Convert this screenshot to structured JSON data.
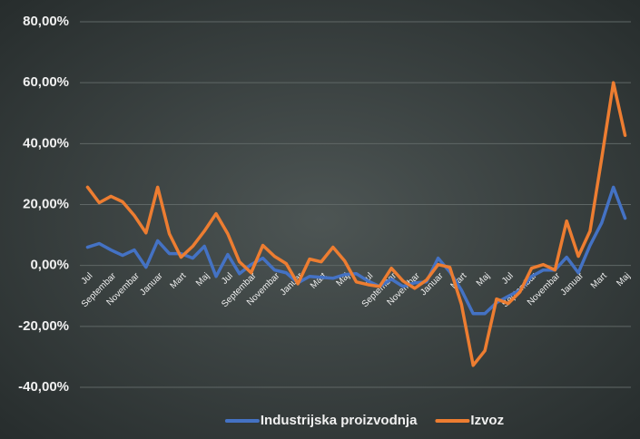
{
  "chart_data": {
    "type": "line",
    "categories": [
      "Jul",
      null,
      "Septembar",
      null,
      "Novembar",
      null,
      "Januar",
      null,
      "Mart",
      null,
      "Maj",
      null,
      "Jul",
      null,
      "Septembar",
      null,
      "Novembar",
      null,
      "Januar",
      null,
      "Mart",
      null,
      "Maj",
      null,
      "Jul",
      null,
      "Septembar",
      null,
      "Novembar",
      null,
      "Januar",
      null,
      "Mart",
      null,
      "Maj",
      null,
      "Jul",
      null,
      "Septembar",
      null,
      "Novembar",
      null,
      "Januar",
      null,
      "Mart",
      null,
      "Maj"
    ],
    "series": [
      {
        "name": "Industrijska proizvodnja",
        "color": "#4472c4",
        "values": [
          6,
          7.2,
          5.1,
          3.3,
          5.1,
          -0.6,
          8.1,
          3.9,
          3.9,
          2.4,
          6.3,
          -3.6,
          3.6,
          -2.7,
          0.3,
          2.4,
          -1.5,
          -2.4,
          -5.7,
          -3.6,
          -3.9,
          -4.2,
          -3,
          -2.7,
          -5.1,
          -6.9,
          -4.5,
          -6.9,
          -5.7,
          -5.4,
          2.4,
          -2.1,
          -8.1,
          -15.8,
          -15.8,
          -12.2,
          -10.1,
          -8.1,
          -3.6,
          -1.5,
          -1.5,
          2.7,
          -2.4,
          6.6,
          14,
          25.7,
          15.5
        ]
      },
      {
        "name": "Izvoz",
        "color": "#ed7d31",
        "values": [
          25.7,
          20.6,
          22.7,
          20.9,
          16.4,
          10.7,
          25.7,
          10.4,
          2.7,
          6.3,
          11.3,
          17,
          10.4,
          1.2,
          -2.4,
          6.6,
          3,
          0.6,
          -6,
          2.1,
          1.2,
          6,
          1.5,
          -5.4,
          -6.3,
          -6.9,
          -0.9,
          -5.1,
          -7.5,
          -4.8,
          0.3,
          -0.6,
          -12.8,
          -32.8,
          -28,
          -11,
          -12.5,
          -8.7,
          -0.9,
          0.3,
          -1.5,
          14.6,
          3,
          11.3,
          35.2,
          60,
          42.7
        ]
      }
    ],
    "ylim": [
      -50,
      80
    ],
    "yticks": [
      {
        "value": -40,
        "label": "-40,00%"
      },
      {
        "value": -20,
        "label": "-20,00%"
      },
      {
        "value": 0,
        "label": "0,00%"
      },
      {
        "value": 20,
        "label": "20,00%"
      },
      {
        "value": 40,
        "label": "40,00%"
      },
      {
        "value": 60,
        "label": "60,00%"
      },
      {
        "value": 80,
        "label": "80,00%"
      }
    ],
    "grid": true,
    "legend": "bottom"
  }
}
